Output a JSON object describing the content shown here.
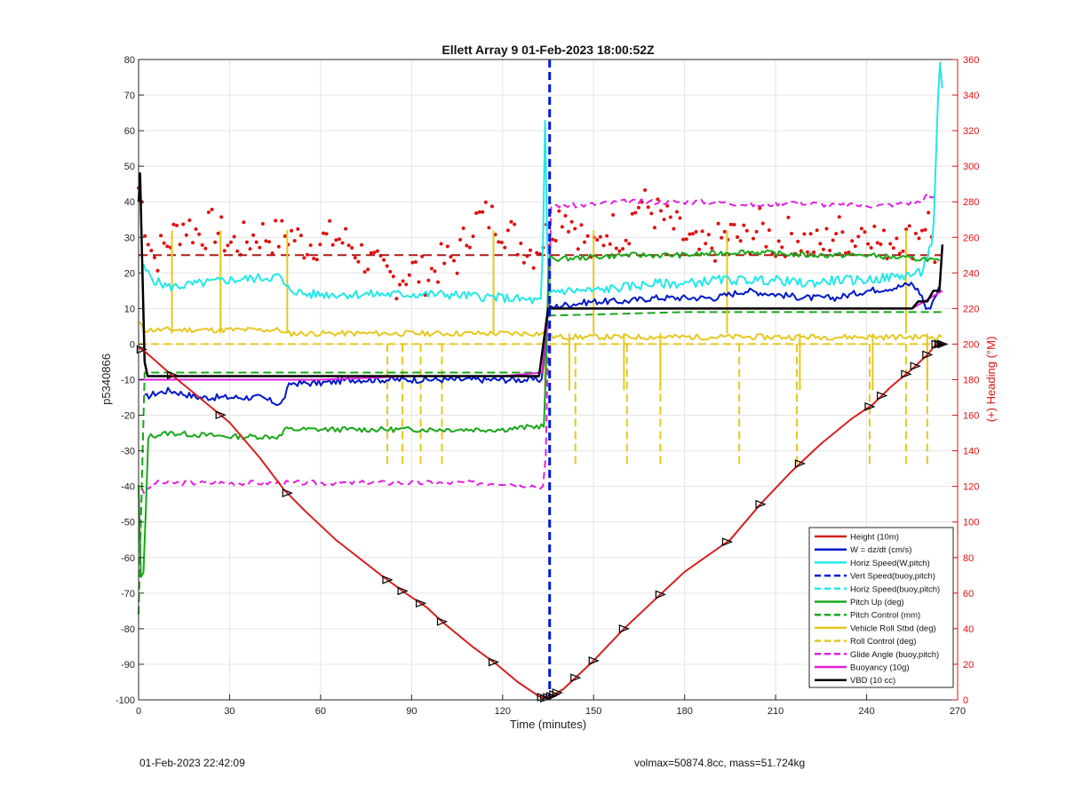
{
  "chart_data": {
    "type": "line",
    "title": "Ellett Array 9 01-Feb-2023 18:00:52Z",
    "xlabel": "Time (minutes)",
    "ylabel": "p5340866",
    "y2label": "(+) Heading (°M)",
    "xlim": [
      0,
      270
    ],
    "ylim": [
      -100,
      80
    ],
    "y2lim": [
      0,
      360
    ],
    "xticks": [
      "0",
      "30",
      "60",
      "90",
      "120",
      "150",
      "180",
      "210",
      "240",
      "270"
    ],
    "yticks": [
      "80",
      "70",
      "60",
      "50",
      "40",
      "30",
      "20",
      "10",
      "0",
      "-10",
      "-20",
      "-30",
      "-40",
      "-50",
      "-60",
      "-70",
      "-80",
      "-90",
      "-100"
    ],
    "y2ticks": [
      "360",
      "340",
      "320",
      "300",
      "280",
      "260",
      "240",
      "220",
      "200",
      "180",
      "160",
      "140",
      "120",
      "100",
      "80",
      "60",
      "40",
      "20",
      "0"
    ],
    "grid": true,
    "legend_position": "bottom-right",
    "colors": {
      "height": "#d42020",
      "w": "#0018c8",
      "horiz": "#22e8e8",
      "pitch": "#18a818",
      "roll": "#e6c820",
      "glide": "#e020e0",
      "buoy": "#e020e0",
      "vbd": "#000000",
      "heading": "#e01010",
      "vertline": "#0018e0",
      "axis_right": "#e01010"
    },
    "series": [
      {
        "name": "Height (10m)",
        "x": [
          0,
          2,
          10,
          20,
          30,
          40,
          48,
          55,
          65,
          80,
          88,
          95,
          100,
          110,
          118,
          125,
          132,
          134,
          136,
          140,
          145,
          150,
          160,
          170,
          180,
          195,
          205,
          215,
          225,
          235,
          242,
          248,
          255,
          260,
          263,
          265
        ],
        "y": [
          -1,
          -2,
          -8,
          -15,
          -22,
          -32,
          -41,
          -47,
          -55,
          -65,
          -70,
          -74,
          -78,
          -85,
          -90,
          -95,
          -99,
          -99.5,
          -99,
          -97,
          -93,
          -89,
          -80,
          -72,
          -64,
          -55,
          -45,
          -36,
          -28,
          -21,
          -17,
          -12,
          -7,
          -3,
          0,
          0
        ]
      },
      {
        "name": "W = dz/dt (cm/s)",
        "x": [
          2,
          5,
          10,
          20,
          30,
          40,
          47,
          48,
          50,
          60,
          70,
          80,
          100,
          120,
          133,
          135,
          140,
          150,
          160,
          170,
          180,
          190,
          200,
          210,
          220,
          230,
          240,
          250,
          255,
          258,
          260,
          264
        ],
        "y": [
          -15,
          -14,
          -13,
          -15,
          -15,
          -15,
          -17,
          -15,
          -11,
          -11,
          -10,
          -10,
          -10,
          -10,
          -10,
          10,
          11,
          12,
          12,
          13,
          13,
          13,
          15,
          14,
          13,
          13,
          15,
          16,
          17,
          14,
          9,
          16
        ]
      },
      {
        "name": "Horiz Speed(W,pitch)",
        "x": [
          1,
          3,
          5,
          10,
          20,
          30,
          47,
          48,
          55,
          70,
          80,
          100,
          120,
          133,
          134,
          135,
          137,
          140,
          150,
          160,
          170,
          180,
          190,
          200,
          210,
          220,
          230,
          240,
          250,
          258,
          262,
          264,
          265
        ],
        "y": [
          22,
          20,
          18,
          16,
          17,
          18,
          19,
          16,
          14,
          14,
          14,
          14,
          13,
          12,
          62,
          14,
          15,
          15,
          15,
          16,
          17,
          17,
          18,
          18,
          18,
          17,
          18,
          18,
          19,
          20,
          30,
          80,
          70
        ]
      },
      {
        "name": "Vert Speed(buoy,pitch)",
        "x": [],
        "y": []
      },
      {
        "name": "Horiz Speed(buoy,pitch)",
        "x": [],
        "y": []
      },
      {
        "name": "Pitch Up (deg)",
        "x": [
          0,
          1,
          2,
          3,
          10,
          30,
          47,
          48,
          60,
          90,
          120,
          133,
          134,
          135,
          140,
          160,
          180,
          200,
          220,
          240,
          255,
          260,
          264
        ],
        "y": [
          -40,
          -72,
          -60,
          -26,
          -25,
          -26,
          -26,
          -24,
          -24,
          -24,
          -24,
          -23,
          -23,
          24,
          24,
          25,
          25,
          26,
          25,
          25,
          24,
          24,
          23
        ]
      },
      {
        "name": "Pitch Control (mm)",
        "x": [
          0,
          2,
          30,
          60,
          90,
          120,
          133,
          135,
          180,
          240,
          265
        ],
        "y": [
          -76,
          -8,
          -8,
          -8,
          -8,
          -8,
          -8,
          8,
          9,
          9,
          9
        ]
      },
      {
        "name": "Vehicle Roll Stbd (deg)",
        "x": [
          0,
          2,
          10,
          20,
          30,
          40,
          47,
          48,
          60,
          80,
          100,
          120,
          133,
          135,
          140,
          160,
          180,
          200,
          220,
          240,
          255,
          265
        ],
        "y": [
          6,
          4,
          4,
          4,
          4,
          4,
          4,
          3,
          3,
          3,
          3,
          3,
          3,
          2,
          2,
          2,
          2,
          2,
          2,
          2,
          2,
          2
        ]
      },
      {
        "name": "Roll Control (deg)",
        "x": [
          0,
          30,
          60,
          90,
          120,
          133,
          135,
          180,
          240,
          265
        ],
        "y": [
          0,
          0,
          0,
          0,
          0,
          0,
          0,
          0,
          0,
          0
        ]
      },
      {
        "name": "Glide Angle (buoy,pitch)",
        "x": [
          1,
          2,
          5,
          20,
          40,
          60,
          90,
          120,
          133,
          134,
          136,
          145,
          160,
          175,
          190,
          205,
          215,
          230,
          245,
          258,
          260,
          264
        ],
        "y": [
          -40,
          -42,
          -39,
          -39,
          -39,
          -39,
          -39,
          -39,
          -40,
          -40,
          39,
          39,
          40,
          40,
          40,
          39,
          40,
          39,
          39,
          40,
          42,
          40
        ]
      },
      {
        "name": "Buoyancy (10g)",
        "x": [
          0,
          2,
          30,
          60,
          90,
          120,
          133,
          135,
          200,
          255,
          265
        ],
        "y": [
          -10,
          -10,
          -10,
          -10,
          -9,
          -9,
          -8,
          10,
          10,
          10,
          15
        ]
      },
      {
        "name": "VBD (10 cc)",
        "x": [
          0,
          0.5,
          1,
          2,
          3,
          30,
          60,
          90,
          120,
          132,
          135,
          140,
          200,
          255,
          257,
          260,
          262,
          264,
          265
        ],
        "y": [
          40,
          48,
          30,
          -5,
          -9,
          -9,
          -9,
          -9,
          -9,
          -9,
          10,
          10,
          10,
          10,
          12,
          12,
          15,
          15,
          28
        ]
      },
      {
        "name": "",
        "x": [
          0,
          2,
          5,
          10,
          15,
          20,
          25,
          30,
          35,
          40,
          45,
          50,
          55,
          60,
          65,
          70,
          75,
          80,
          85,
          90,
          95,
          100,
          105,
          110,
          115,
          120,
          125,
          130,
          135,
          140,
          145,
          150,
          155,
          160,
          165,
          170,
          175,
          180,
          185,
          190,
          195,
          200,
          205,
          210,
          215,
          220,
          225,
          230,
          235,
          240,
          245,
          250,
          255,
          260,
          263
        ],
        "y": [
          288,
          270,
          248,
          258,
          268,
          262,
          266,
          256,
          258,
          262,
          260,
          262,
          256,
          258,
          260,
          256,
          248,
          240,
          236,
          242,
          238,
          246,
          248,
          268,
          272,
          266,
          258,
          252,
          262,
          276,
          264,
          250,
          266,
          260,
          280,
          274,
          268,
          260,
          252,
          256,
          262,
          258,
          266,
          256,
          262,
          258,
          254,
          264,
          258,
          268,
          254,
          262,
          258,
          272,
          248
        ]
      }
    ],
    "legend": [
      "Height (10m)",
      "W = dz/dt (cm/s)",
      "Horiz Speed(W,pitch)",
      "Vert Speed(buoy,pitch)",
      "Horiz Speed(buoy,pitch)",
      "Pitch Up (deg)",
      "Pitch Control (mm)",
      "Vehicle Roll Stbd (deg)",
      "Roll Control (deg)",
      "Glide Angle (buoy,pitch)",
      "Buoyancy (10g)",
      "VBD (10 cc)"
    ],
    "vertical_line_x": 135.5,
    "roll_spikes": {
      "solid_x": [
        11,
        27,
        49,
        117,
        134,
        142,
        150,
        160,
        172,
        194,
        218,
        242,
        253,
        260
      ],
      "dashed_x": [
        82,
        87,
        93,
        100,
        144,
        161,
        172,
        198,
        217,
        241,
        253,
        260
      ]
    },
    "height_markers_x": [
      1,
      11,
      27,
      49,
      82,
      87,
      93,
      100,
      117,
      133,
      134,
      135,
      136,
      137,
      138,
      144,
      150,
      160,
      172,
      194,
      205,
      218,
      241,
      245,
      253,
      256,
      260,
      263,
      264,
      265
    ]
  },
  "footer": {
    "timestamp": "01-Feb-2023 22:42:09",
    "mass_info": "volmax=50874.8cc, mass=51.724kg"
  }
}
